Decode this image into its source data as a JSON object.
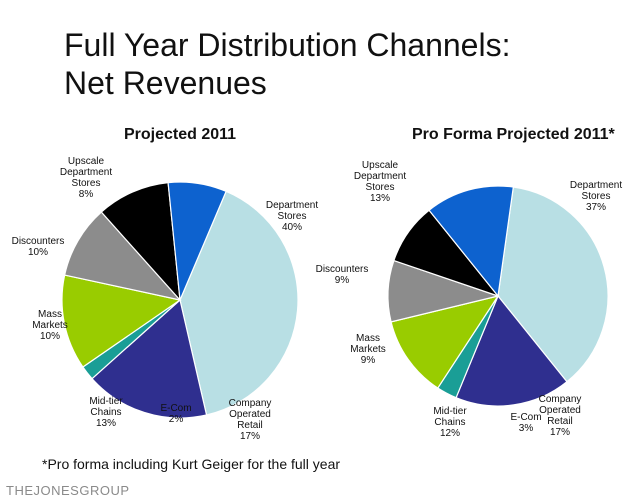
{
  "title": {
    "line1": "Full Year Distribution Channels:",
    "line2": "Net Revenues"
  },
  "footnote": "*Pro forma including Kurt Geiger for the full year",
  "logo_text": "THEJONESGROUP",
  "colors": {
    "department_stores": "#b8dfe4",
    "company_operated_retail": "#2f2f8f",
    "e_com": "#1a9e96",
    "mid_tier_chains": "#99cc00",
    "mass_markets": "#8c8c8c",
    "discounters": "#000000",
    "upscale_department_stores": "#0d62cf"
  },
  "chart_data": [
    {
      "type": "pie",
      "title": "Projected 2011",
      "slices": [
        {
          "label": [
            "Department",
            "Stores",
            "40%"
          ],
          "value": 40,
          "color": "#b8dfe4"
        },
        {
          "label": [
            "Company",
            "Operated",
            "Retail",
            "17%"
          ],
          "value": 17,
          "color": "#2f2f8f"
        },
        {
          "label": [
            "E-Com",
            "2%"
          ],
          "value": 2,
          "color": "#1a9e96"
        },
        {
          "label": [
            "Mid-tier",
            "Chains",
            "13%"
          ],
          "value": 13,
          "color": "#99cc00"
        },
        {
          "label": [
            "Mass",
            "Markets",
            "10%"
          ],
          "value": 10,
          "color": "#8c8c8c"
        },
        {
          "label": [
            "Discounters",
            "10%"
          ],
          "value": 10,
          "color": "#000000"
        },
        {
          "label": [
            "Upscale",
            "Department",
            "Stores",
            "8%"
          ],
          "value": 8,
          "color": "#0d62cf"
        }
      ]
    },
    {
      "type": "pie",
      "title": "Pro Forma Projected 2011*",
      "slices": [
        {
          "label": [
            "Department",
            "Stores",
            "37%"
          ],
          "value": 37,
          "color": "#b8dfe4"
        },
        {
          "label": [
            "Company",
            "Operated",
            "Retail",
            "17%"
          ],
          "value": 17,
          "color": "#2f2f8f"
        },
        {
          "label": [
            "E-Com",
            "3%"
          ],
          "value": 3,
          "color": "#1a9e96"
        },
        {
          "label": [
            "Mid-tier",
            "Chains",
            "12%"
          ],
          "value": 12,
          "color": "#99cc00"
        },
        {
          "label": [
            "Mass",
            "Markets",
            "9%"
          ],
          "value": 9,
          "color": "#8c8c8c"
        },
        {
          "label": [
            "Discounters",
            "9%"
          ],
          "value": 9,
          "color": "#000000"
        },
        {
          "label": [
            "Upscale",
            "Department",
            "Stores",
            "13%"
          ],
          "value": 13,
          "color": "#0d62cf"
        }
      ]
    }
  ]
}
